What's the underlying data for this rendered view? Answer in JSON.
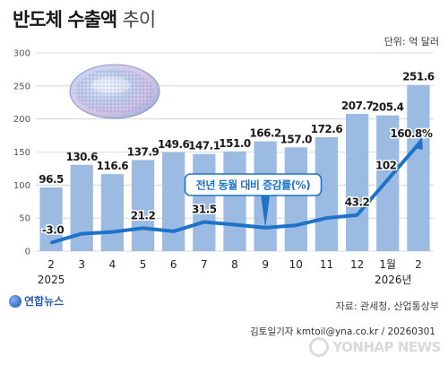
{
  "header": {
    "title_main": "반도체 수출액",
    "title_sub": "추이",
    "unit": "단위: 억 달러"
  },
  "footer": {
    "source": "자료: 관세청, 산업통상부",
    "credit": "김토일기자 kmtoil@yna.co.kr / 20260301",
    "agency_logo": "연합뉴스",
    "watermark": "YONHAP NEWS"
  },
  "chart_data": {
    "type": "bar",
    "categories": [
      "2",
      "3",
      "4",
      "5",
      "6",
      "7",
      "8",
      "9",
      "10",
      "11",
      "12",
      "1월",
      "2"
    ],
    "year_labels": [
      {
        "text": "2025",
        "category_index": 0
      },
      {
        "text": "2026년",
        "category_index": 11
      }
    ],
    "ylim": [
      0,
      300
    ],
    "yticks": [
      0,
      50,
      100,
      150,
      200,
      250,
      300
    ],
    "grid": true,
    "bars": {
      "values": [
        96.5,
        130.6,
        116.6,
        137.9,
        149.6,
        147.1,
        151.0,
        166.2,
        157.0,
        172.6,
        207.7,
        205.4,
        251.6
      ],
      "labels": [
        "96.5",
        "130.6",
        "116.6",
        "137.9",
        "149.6",
        "147.1",
        "151.0",
        "166.2",
        "157.0",
        "172.6",
        "207.7",
        "205.4",
        "251.6"
      ],
      "color": "#9bbbe3"
    },
    "line": {
      "name": "전년 동월 대비 증감률(%)",
      "values": [
        -3.0,
        12,
        15,
        21.2,
        16,
        31.5,
        27,
        22,
        26,
        38,
        43.2,
        102,
        160.8
      ],
      "labels": [
        {
          "index": 0,
          "text": "-3.0"
        },
        {
          "index": 3,
          "text": "21.2"
        },
        {
          "index": 5,
          "text": "31.5"
        },
        {
          "index": 10,
          "text": "43.2"
        },
        {
          "index": 11,
          "text": "102"
        },
        {
          "index": 12,
          "text": "160.8%"
        }
      ],
      "color": "#1e73c8"
    },
    "callout": "전년 동월 대비 증감률(%)"
  }
}
